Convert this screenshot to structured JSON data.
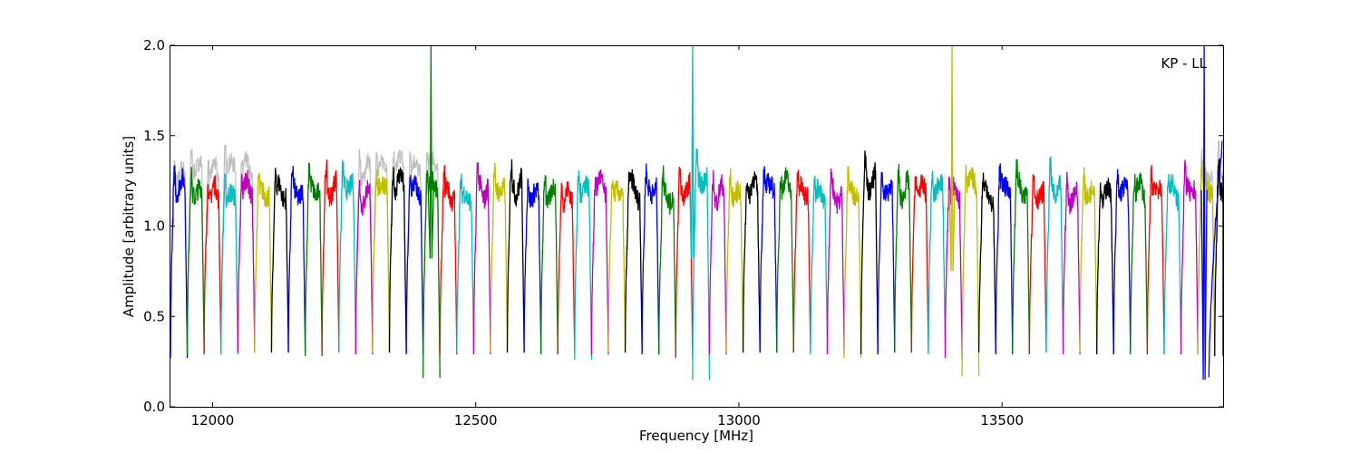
{
  "chart_data": {
    "type": "line",
    "xlabel": "Frequency [MHz]",
    "ylabel": "Amplitude [arbitrary units]",
    "xlim": [
      11920,
      13920
    ],
    "ylim": [
      0.0,
      2.0
    ],
    "xticks": [
      12000,
      12500,
      13000,
      13500
    ],
    "xtick_labels": [
      "12000",
      "12500",
      "13000",
      "13500"
    ],
    "yticks": [
      0.0,
      0.5,
      1.0,
      1.5,
      2.0
    ],
    "ytick_labels": [
      "0.0",
      "0.5",
      "1.0",
      "1.5",
      "2.0"
    ],
    "annotation": "KP - LL",
    "grid": false,
    "channel_width_mhz": 32,
    "reference_color": "#bfbfbf",
    "reference_level": 1.22,
    "color_cycle": [
      "#0000ff",
      "#008000",
      "#ff0000",
      "#00bfbf",
      "#bf00bf",
      "#bfbf00",
      "#000000"
    ],
    "channels": [
      {
        "start": 11920,
        "mean": 1.22,
        "edge_low": 0.27,
        "color": "#0000ff"
      },
      {
        "start": 11952,
        "mean": 1.19,
        "edge_low": 0.29,
        "color": "#008000"
      },
      {
        "start": 11984,
        "mean": 1.18,
        "edge_low": 0.3,
        "color": "#ff0000"
      },
      {
        "start": 12016,
        "mean": 1.17,
        "edge_low": 0.29,
        "color": "#00bfbf"
      },
      {
        "start": 12048,
        "mean": 1.21,
        "edge_low": 0.3,
        "color": "#bf00bf"
      },
      {
        "start": 12080,
        "mean": 1.18,
        "edge_low": 0.3,
        "color": "#bfbf00"
      },
      {
        "start": 12112,
        "mean": 1.19,
        "edge_low": 0.3,
        "color": "#000000"
      },
      {
        "start": 12144,
        "mean": 1.19,
        "edge_low": 0.3,
        "color": "#0000ff"
      },
      {
        "start": 12176,
        "mean": 1.2,
        "edge_low": 0.28,
        "color": "#008000"
      },
      {
        "start": 12208,
        "mean": 1.21,
        "edge_low": 0.3,
        "color": "#ff0000"
      },
      {
        "start": 12240,
        "mean": 1.22,
        "edge_low": 0.3,
        "color": "#00bfbf"
      },
      {
        "start": 12272,
        "mean": 1.16,
        "edge_low": 0.29,
        "color": "#bf00bf"
      },
      {
        "start": 12304,
        "mean": 1.22,
        "edge_low": 0.3,
        "color": "#bfbf00"
      },
      {
        "start": 12336,
        "mean": 1.24,
        "edge_low": 0.3,
        "color": "#000000"
      },
      {
        "start": 12368,
        "mean": 1.2,
        "edge_low": 0.29,
        "color": "#0000ff"
      },
      {
        "start": 12400,
        "mean": 1.22,
        "edge_low": 0.16,
        "color": "#008000"
      },
      {
        "start": 12432,
        "mean": 1.18,
        "edge_low": 0.29,
        "color": "#ff0000"
      },
      {
        "start": 12464,
        "mean": 1.16,
        "edge_low": 0.3,
        "color": "#00bfbf"
      },
      {
        "start": 12496,
        "mean": 1.2,
        "edge_low": 0.29,
        "color": "#bf00bf"
      },
      {
        "start": 12528,
        "mean": 1.2,
        "edge_low": 0.3,
        "color": "#bfbf00"
      },
      {
        "start": 12560,
        "mean": 1.22,
        "edge_low": 0.3,
        "color": "#000000"
      },
      {
        "start": 12592,
        "mean": 1.17,
        "edge_low": 0.3,
        "color": "#0000ff"
      },
      {
        "start": 12624,
        "mean": 1.18,
        "edge_low": 0.29,
        "color": "#008000"
      },
      {
        "start": 12656,
        "mean": 1.16,
        "edge_low": 0.29,
        "color": "#ff0000"
      },
      {
        "start": 12688,
        "mean": 1.21,
        "edge_low": 0.26,
        "color": "#00bfbf"
      },
      {
        "start": 12720,
        "mean": 1.22,
        "edge_low": 0.29,
        "color": "#bf00bf"
      },
      {
        "start": 12752,
        "mean": 1.18,
        "edge_low": 0.3,
        "color": "#bfbf00"
      },
      {
        "start": 12784,
        "mean": 1.2,
        "edge_low": 0.3,
        "color": "#000000"
      },
      {
        "start": 12816,
        "mean": 1.2,
        "edge_low": 0.29,
        "color": "#0000ff"
      },
      {
        "start": 12848,
        "mean": 1.17,
        "edge_low": 0.29,
        "color": "#008000"
      },
      {
        "start": 12880,
        "mean": 1.2,
        "edge_low": 0.27,
        "color": "#ff0000"
      },
      {
        "start": 12912,
        "mean": 1.26,
        "edge_low": 0.15,
        "color": "#00bfbf"
      },
      {
        "start": 12944,
        "mean": 1.18,
        "edge_low": 0.29,
        "color": "#bf00bf"
      },
      {
        "start": 12976,
        "mean": 1.18,
        "edge_low": 0.3,
        "color": "#bfbf00"
      },
      {
        "start": 13008,
        "mean": 1.21,
        "edge_low": 0.3,
        "color": "#000000"
      },
      {
        "start": 13040,
        "mean": 1.22,
        "edge_low": 0.3,
        "color": "#0000ff"
      },
      {
        "start": 13072,
        "mean": 1.22,
        "edge_low": 0.3,
        "color": "#008000"
      },
      {
        "start": 13104,
        "mean": 1.19,
        "edge_low": 0.3,
        "color": "#ff0000"
      },
      {
        "start": 13136,
        "mean": 1.17,
        "edge_low": 0.29,
        "color": "#00bfbf"
      },
      {
        "start": 13168,
        "mean": 1.17,
        "edge_low": 0.29,
        "color": "#bf00bf"
      },
      {
        "start": 13200,
        "mean": 1.19,
        "edge_low": 0.27,
        "color": "#bfbf00"
      },
      {
        "start": 13232,
        "mean": 1.24,
        "edge_low": 0.29,
        "color": "#000000"
      },
      {
        "start": 13264,
        "mean": 1.19,
        "edge_low": 0.3,
        "color": "#0000ff"
      },
      {
        "start": 13296,
        "mean": 1.2,
        "edge_low": 0.3,
        "color": "#008000"
      },
      {
        "start": 13328,
        "mean": 1.2,
        "edge_low": 0.3,
        "color": "#ff0000"
      },
      {
        "start": 13360,
        "mean": 1.21,
        "edge_low": 0.29,
        "color": "#00bfbf"
      },
      {
        "start": 13392,
        "mean": 1.18,
        "edge_low": 0.27,
        "color": "#bf00bf"
      },
      {
        "start": 13424,
        "mean": 1.24,
        "edge_low": 0.17,
        "color": "#bfbf00"
      },
      {
        "start": 13456,
        "mean": 1.17,
        "edge_low": 0.3,
        "color": "#000000"
      },
      {
        "start": 13488,
        "mean": 1.22,
        "edge_low": 0.29,
        "color": "#0000ff"
      },
      {
        "start": 13520,
        "mean": 1.2,
        "edge_low": 0.29,
        "color": "#008000"
      },
      {
        "start": 13552,
        "mean": 1.17,
        "edge_low": 0.3,
        "color": "#ff0000"
      },
      {
        "start": 13584,
        "mean": 1.2,
        "edge_low": 0.3,
        "color": "#00bfbf"
      },
      {
        "start": 13616,
        "mean": 1.16,
        "edge_low": 0.29,
        "color": "#bf00bf"
      },
      {
        "start": 13648,
        "mean": 1.19,
        "edge_low": 0.3,
        "color": "#bfbf00"
      },
      {
        "start": 13680,
        "mean": 1.17,
        "edge_low": 0.29,
        "color": "#000000"
      },
      {
        "start": 13712,
        "mean": 1.2,
        "edge_low": 0.3,
        "color": "#0000ff"
      },
      {
        "start": 13744,
        "mean": 1.2,
        "edge_low": 0.29,
        "color": "#008000"
      },
      {
        "start": 13776,
        "mean": 1.21,
        "edge_low": 0.29,
        "color": "#ff0000"
      },
      {
        "start": 13808,
        "mean": 1.19,
        "edge_low": 0.29,
        "color": "#00bfbf"
      },
      {
        "start": 13840,
        "mean": 1.2,
        "edge_low": 0.29,
        "color": "#bf00bf"
      },
      {
        "start": 13872,
        "mean": 1.22,
        "edge_low": 0.29,
        "color": "#bfbf00"
      },
      {
        "start": 13904,
        "mean": 1.2,
        "edge_low": 0.28,
        "color": "#000000"
      }
    ],
    "spikes": [
      {
        "x": 12415,
        "y": 2.0,
        "low": 0.82,
        "color": "#008000"
      },
      {
        "x": 12912,
        "y": 2.0,
        "low": 0.82,
        "color": "#00bfbf"
      },
      {
        "x": 13405,
        "y": 2.0,
        "low": 0.75,
        "color": "#bfbf00"
      },
      {
        "x": 13884,
        "y": 2.0,
        "low": 0.15,
        "color": "#0000ff"
      }
    ],
    "edge_trace": {
      "x": 13893,
      "low": 0.14,
      "color": "#0000ff"
    }
  }
}
